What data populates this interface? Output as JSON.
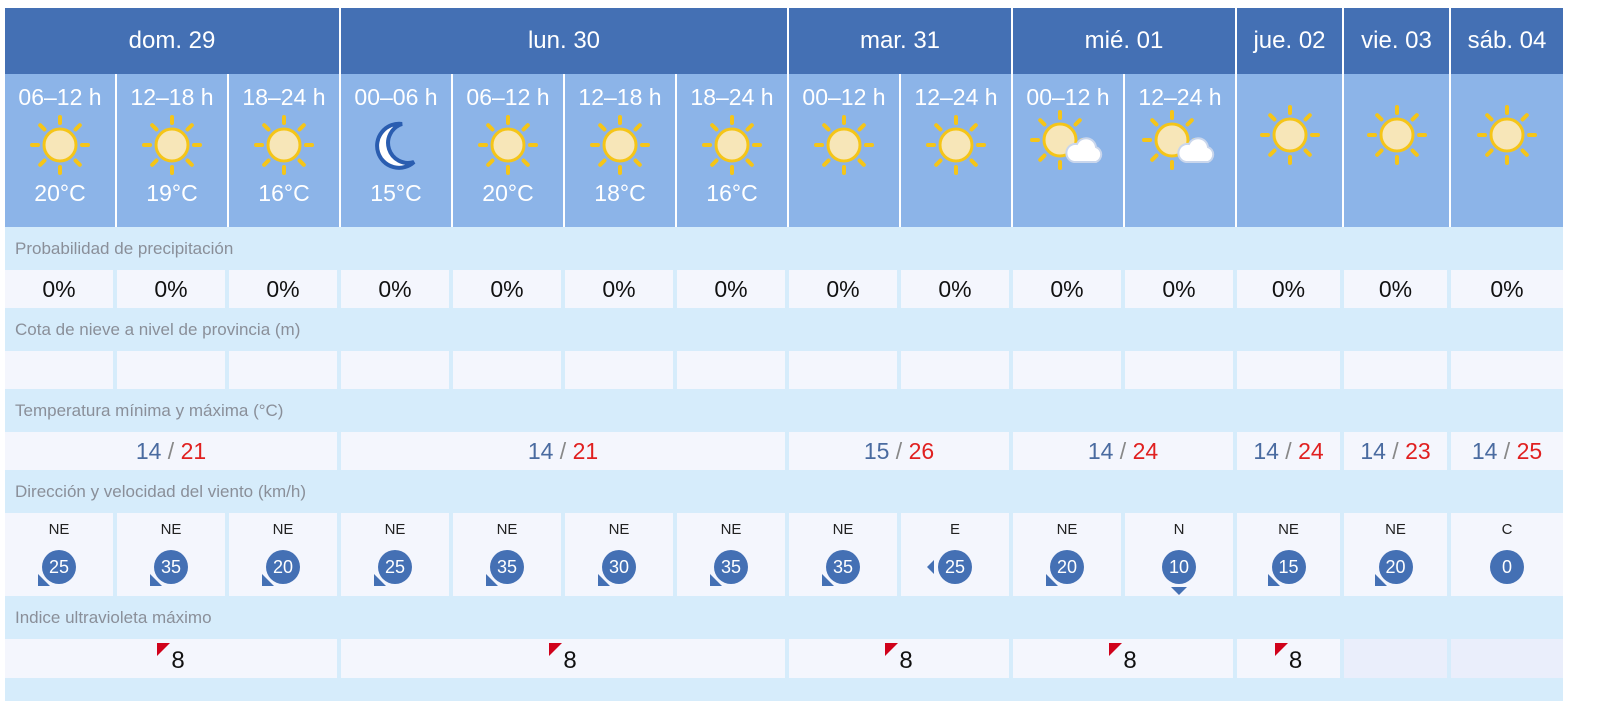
{
  "days": [
    {
      "label": "dom. 29",
      "span": 3,
      "min": "14",
      "max": "21",
      "uv": "8"
    },
    {
      "label": "lun. 30",
      "span": 4,
      "min": "14",
      "max": "21",
      "uv": "8"
    },
    {
      "label": "mar. 31",
      "span": 2,
      "min": "15",
      "max": "26",
      "uv": "8"
    },
    {
      "label": "mié. 01",
      "span": 2,
      "min": "14",
      "max": "24",
      "uv": "8"
    },
    {
      "label": "jue. 02",
      "span": 1,
      "min": "14",
      "max": "24",
      "uv": "8"
    },
    {
      "label": "vie. 03",
      "span": 1,
      "min": "14",
      "max": "23",
      "uv": ""
    },
    {
      "label": "sáb. 04",
      "span": 1,
      "min": "14",
      "max": "25",
      "uv": ""
    }
  ],
  "periods": [
    {
      "time": "06–12 h",
      "icon": "sun-icon",
      "temp": "20°C",
      "precip": "0%",
      "wind_dir": "NE",
      "wind_speed": "25"
    },
    {
      "time": "12–18 h",
      "icon": "sun-icon",
      "temp": "19°C",
      "precip": "0%",
      "wind_dir": "NE",
      "wind_speed": "35"
    },
    {
      "time": "18–24 h",
      "icon": "sun-icon",
      "temp": "16°C",
      "precip": "0%",
      "wind_dir": "NE",
      "wind_speed": "20"
    },
    {
      "time": "00–06 h",
      "icon": "moon-icon",
      "temp": "15°C",
      "precip": "0%",
      "wind_dir": "NE",
      "wind_speed": "25"
    },
    {
      "time": "06–12 h",
      "icon": "sun-icon",
      "temp": "20°C",
      "precip": "0%",
      "wind_dir": "NE",
      "wind_speed": "35"
    },
    {
      "time": "12–18 h",
      "icon": "sun-icon",
      "temp": "18°C",
      "precip": "0%",
      "wind_dir": "NE",
      "wind_speed": "30"
    },
    {
      "time": "18–24 h",
      "icon": "sun-icon",
      "temp": "16°C",
      "precip": "0%",
      "wind_dir": "NE",
      "wind_speed": "35"
    },
    {
      "time": "00–12 h",
      "icon": "sun-icon",
      "temp": "",
      "precip": "0%",
      "wind_dir": "NE",
      "wind_speed": "35"
    },
    {
      "time": "12–24 h",
      "icon": "sun-icon",
      "temp": "",
      "precip": "0%",
      "wind_dir": "E",
      "wind_speed": "25"
    },
    {
      "time": "00–12 h",
      "icon": "sun-cloud-icon",
      "temp": "",
      "precip": "0%",
      "wind_dir": "NE",
      "wind_speed": "20"
    },
    {
      "time": "12–24 h",
      "icon": "sun-cloud-icon",
      "temp": "",
      "precip": "0%",
      "wind_dir": "N",
      "wind_speed": "10"
    },
    {
      "time": "",
      "icon": "sun-icon",
      "temp": "",
      "precip": "0%",
      "wind_dir": "NE",
      "wind_speed": "15"
    },
    {
      "time": "",
      "icon": "sun-icon",
      "temp": "",
      "precip": "0%",
      "wind_dir": "NE",
      "wind_speed": "20"
    },
    {
      "time": "",
      "icon": "sun-icon",
      "temp": "",
      "precip": "0%",
      "wind_dir": "C",
      "wind_speed": "0"
    }
  ],
  "labels": {
    "precip": "Probabilidad de precipitación",
    "snow": "Cota de nieve a nivel de provincia (m)",
    "temp": "Temperatura mínima y máxima (°C)",
    "wind": "Dirección y velocidad del viento (km/h)",
    "uv": "Indice ultravioleta máximo"
  },
  "temp_sep": " / ",
  "colors": {
    "header": "#4470b4",
    "period": "#8cb4e8",
    "band": "#d6ecfb",
    "max": "#e02020",
    "min": "#4a6ba0",
    "uv_flag": "#d0021b"
  }
}
